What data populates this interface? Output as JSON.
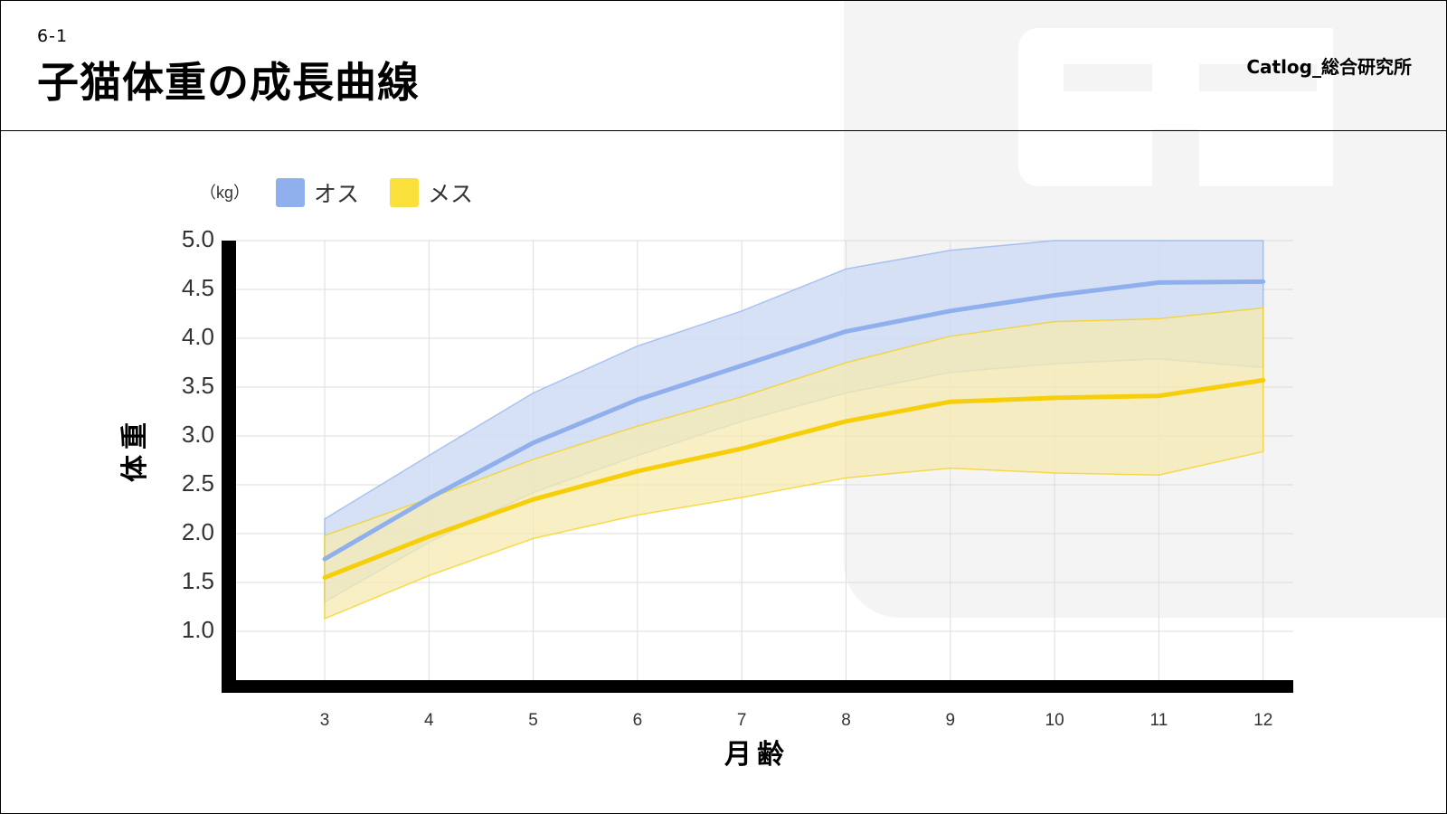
{
  "header": {
    "section_number": "6-1",
    "title": "子猫体重の成長曲線",
    "brand": "Catlog_総合研究所"
  },
  "colors": {
    "male": "#8fb0ec",
    "male_band": "#cfdcf4",
    "female": "#f6cf0a",
    "female_band": "#f5ebb0",
    "axis": "#000000",
    "grid": "#dddddd"
  },
  "chart_data": {
    "type": "line",
    "unit_label": "（kg）",
    "xlabel": "月齢",
    "ylabel": "体重",
    "x": [
      3,
      4,
      5,
      6,
      7,
      8,
      9,
      10,
      11,
      12
    ],
    "x_tick_labels": [
      "3",
      "4",
      "5",
      "6",
      "7",
      "8",
      "9",
      "10",
      "11",
      "12"
    ],
    "y_tick_labels": [
      "5.0",
      "4.5",
      "4.0",
      "3.5",
      "3.0",
      "2.5",
      "2.0",
      "1.5",
      "1.0"
    ],
    "ylim": [
      0.5,
      5.0
    ],
    "grid": true,
    "legend_position": "top-left",
    "series": [
      {
        "name": "オス",
        "color": "#8fb0ec",
        "values": [
          1.74,
          2.36,
          2.93,
          3.37,
          3.72,
          4.07,
          4.28,
          4.44,
          4.57,
          4.58
        ],
        "upper": [
          2.15,
          2.8,
          3.44,
          3.92,
          4.28,
          4.71,
          4.9,
          5.0,
          5.0,
          5.0
        ],
        "lower": [
          1.3,
          1.91,
          2.42,
          2.8,
          3.15,
          3.44,
          3.65,
          3.74,
          3.79,
          3.7
        ]
      },
      {
        "name": "メス",
        "color": "#f6cf0a",
        "values": [
          1.55,
          1.97,
          2.35,
          2.64,
          2.87,
          3.15,
          3.35,
          3.39,
          3.41,
          3.57
        ],
        "upper": [
          1.98,
          2.36,
          2.76,
          3.1,
          3.4,
          3.75,
          4.02,
          4.17,
          4.2,
          4.31
        ],
        "lower": [
          1.13,
          1.57,
          1.95,
          2.19,
          2.37,
          2.57,
          2.67,
          2.62,
          2.6,
          2.84
        ]
      }
    ]
  }
}
